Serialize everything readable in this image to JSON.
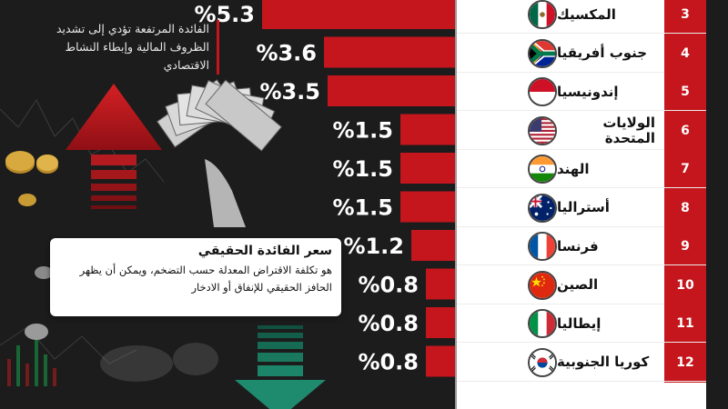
{
  "note": {
    "text": "الفائدة المرتفعة تؤدي إلى تشديد الظروف المالية وإبطاء النشاط الاقتصادي"
  },
  "definition": {
    "title": "سعر الفائدة الحقيقي",
    "body": "هو تكلفة الاقتراض المعدلة حسب التضخم، ويمكن أن يظهر الحافز الحقيقي للإنفاق أو الادخار"
  },
  "colors": {
    "bar": "#c4161c",
    "up_arrow": "#d42024",
    "down_arrow": "#1e8a6e",
    "panel": "#ffffff"
  },
  "chart_data": {
    "type": "bar",
    "orientation": "horizontal",
    "ranks": [
      "3",
      "4",
      "5",
      "6",
      "7",
      "8",
      "9",
      "10",
      "11",
      "12"
    ],
    "categories": [
      "المكسيك",
      "جنوب أفريقيا",
      "إندونيسيا",
      "الولايات المتحدة",
      "الهند",
      "أستراليا",
      "فرنسا",
      "الصين",
      "إيطاليا",
      "كوريا الجنوبية"
    ],
    "flags": [
      "flag-mexico-icon",
      "flag-south-africa-icon",
      "flag-indonesia-icon",
      "flag-usa-icon",
      "flag-india-icon",
      "flag-australia-icon",
      "flag-france-icon",
      "flag-china-icon",
      "flag-italy-icon",
      "flag-south-korea-icon"
    ],
    "values": [
      5.3,
      3.6,
      3.5,
      1.5,
      1.5,
      1.5,
      1.2,
      0.8,
      0.8,
      0.8
    ],
    "labels": [
      "%5.3",
      "%3.6",
      "%3.5",
      "%1.5",
      "%1.5",
      "%1.5",
      "%1.2",
      "%0.8",
      "%0.8",
      "%0.8"
    ]
  }
}
